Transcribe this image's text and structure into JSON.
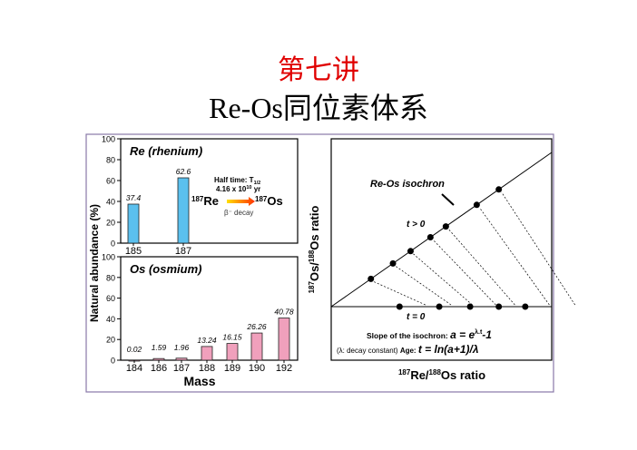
{
  "slide": {
    "title": "第七讲",
    "subtitle": "Re-Os同位素体系"
  },
  "chart_data": [
    {
      "type": "bar",
      "title": "Re (rhenium)",
      "categories": [
        "185",
        "187"
      ],
      "values": [
        37.4,
        62.6
      ],
      "labels": [
        "37.4",
        "62.6"
      ],
      "ylabel": "Natural abundance (%)",
      "ylim": [
        0,
        100
      ],
      "yticks": [
        "0",
        "20",
        "40",
        "60",
        "80",
        "100"
      ],
      "color": "#5bc0ee",
      "annotation": {
        "half": "Half time: T",
        "half_sub": "1/2",
        "age": "4.16 x 10",
        "age_exp": "10",
        "age_unit": " yr",
        "sup1": "187",
        "el1": "Re",
        "sup2": "187",
        "el2": "Os",
        "decay": "β⁻ decay"
      }
    },
    {
      "type": "bar",
      "title": "Os (osmium)",
      "categories": [
        "184",
        "186",
        "187",
        "188",
        "189",
        "190",
        "192"
      ],
      "values": [
        0.02,
        1.59,
        1.96,
        13.24,
        16.15,
        26.26,
        40.78
      ],
      "labels": [
        "0.02",
        "1.59",
        "1.96",
        "13.24",
        "16.15",
        "26.26",
        "40.78"
      ],
      "xlabel": "Mass",
      "ylim": [
        0,
        100
      ],
      "yticks": [
        "0",
        "20",
        "40",
        "60",
        "80",
        "100"
      ],
      "color": "#f0a0bc"
    },
    {
      "type": "scatter",
      "title": "Re-Os isochron",
      "xlabel_sup1": "187",
      "xlabel_a": "Re/",
      "xlabel_sup2": "188",
      "xlabel_b": "Os ratio",
      "ylabel_sup1": "187",
      "ylabel_a": "Os/",
      "ylabel_sup2": "188",
      "ylabel_b": "Os ratio",
      "t_gt": "t > 0",
      "t_eq": "t = 0",
      "slope_label": "Slope of the isochron: ",
      "slope_eq": "a = e",
      "slope_exp": "λ.t",
      "slope_tail": "-1",
      "lambda_label": "(λ: decay constant)  ",
      "age_label": "Age: ",
      "age_eq": "t = ln(a+1)/λ",
      "initial_points_x": [
        0.31,
        0.49,
        0.63,
        0.76,
        0.88
      ],
      "isochron_points_x": [
        0.18,
        0.28,
        0.36,
        0.45,
        0.52,
        0.66,
        0.76
      ]
    }
  ]
}
